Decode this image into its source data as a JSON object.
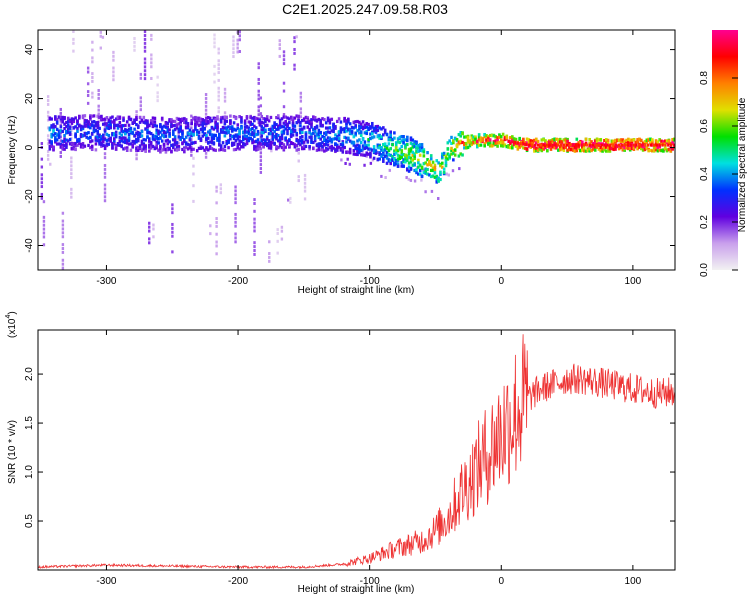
{
  "title": "C2E1.2025.247.09.58.R03",
  "chart_data": [
    {
      "type": "heatmap",
      "name": "spectrogram",
      "xlabel": "Height of straight line (km)",
      "ylabel": "Frequency (Hz)",
      "xlim": [
        -352,
        132
      ],
      "ylim": [
        -50,
        48
      ],
      "xticks": [
        -300,
        -200,
        -100,
        0,
        100
      ],
      "xtick_labels": [
        "-300",
        "-200",
        "-100",
        "0",
        "100"
      ],
      "yticks": [
        -40,
        -20,
        0,
        20,
        40
      ],
      "ytick_labels": [
        "-40",
        "-20",
        "0",
        "20",
        "40"
      ],
      "ridge": {
        "x": [
          -345,
          -320,
          -300,
          -250,
          -200,
          -160,
          -120,
          -100,
          -80,
          -65,
          -55,
          -48,
          -40,
          -30,
          -15,
          0,
          20,
          60,
          100,
          130
        ],
        "frequency": [
          6,
          6,
          6,
          5,
          6,
          6,
          5,
          3,
          -1,
          -4,
          -7,
          -10,
          -1,
          2,
          3,
          3,
          1,
          1,
          1,
          1
        ],
        "amplitude": [
          0.35,
          0.3,
          0.32,
          0.3,
          0.32,
          0.3,
          0.35,
          0.4,
          0.5,
          0.55,
          0.6,
          0.55,
          0.6,
          0.7,
          0.75,
          0.8,
          0.9,
          0.9,
          0.9,
          0.9
        ]
      },
      "colorbar": {
        "label": "Normalized spectral amplitude",
        "range": [
          0.0,
          1.0
        ],
        "ticks": [
          0.0,
          0.2,
          0.4,
          0.6,
          0.8
        ],
        "tick_labels": [
          "0.0",
          "0.2",
          "0.4",
          "0.6",
          "0.8"
        ],
        "colormap": [
          "#f2f2f2",
          "#c9a0ec",
          "#6000e0",
          "#0030ff",
          "#00e0e0",
          "#00e000",
          "#e0e000",
          "#ff8000",
          "#ff0000",
          "#ff0090"
        ]
      }
    },
    {
      "type": "line",
      "name": "snr",
      "xlabel": "Height of straight line (km)",
      "ylabel": "SNR (10 * v/v)",
      "scale_label": "(x10",
      "scale_exponent": "4",
      "scale_suffix": ")",
      "xlim": [
        -352,
        132
      ],
      "ylim": [
        0,
        2.45
      ],
      "xticks": [
        -300,
        -200,
        -100,
        0,
        100
      ],
      "xtick_labels": [
        "-300",
        "-200",
        "-100",
        "0",
        "100"
      ],
      "yticks": [
        0.5,
        1.0,
        1.5,
        2.0
      ],
      "ytick_labels": [
        "0.5",
        "1.0",
        "1.5",
        "2.0"
      ],
      "color": "#ee3333",
      "x": [
        -352,
        -300,
        -200,
        -150,
        -120,
        -100,
        -80,
        -60,
        -50,
        -40,
        -30,
        -20,
        -10,
        0,
        10,
        20,
        30,
        40,
        50,
        60,
        80,
        100,
        120,
        132
      ],
      "y": [
        0.03,
        0.05,
        0.03,
        0.03,
        0.06,
        0.12,
        0.22,
        0.3,
        0.4,
        0.55,
        0.8,
        1.0,
        1.2,
        1.4,
        1.6,
        1.75,
        1.85,
        1.9,
        1.95,
        1.95,
        1.9,
        1.85,
        1.8,
        1.82
      ]
    }
  ]
}
